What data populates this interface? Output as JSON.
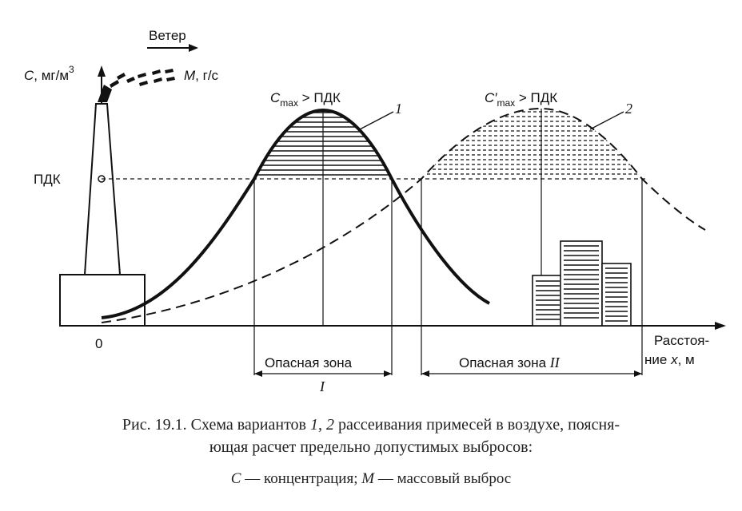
{
  "labels": {
    "wind": "Ветер",
    "y_axis_c": "C",
    "y_axis_unit": ", мг/м",
    "y_axis_exp": "3",
    "emission_m": "M",
    "emission_unit": ", г/с",
    "pdk": "ПДК",
    "origin": "0",
    "cmax_c": "C",
    "cmax_sub": "max",
    "cmax_rest": " > ПДК",
    "cmax2_c": "C′",
    "cmax2_sub": "max",
    "cmax2_rest": " > ПДК",
    "curve1": "1",
    "curve2": "2",
    "x_axis_line1": "Расстоя-",
    "x_axis_line2_a": "ние ",
    "x_axis_line2_x": "x",
    "x_axis_line2_b": ", м",
    "zone1": "Опасная зона",
    "zone1_num": "I",
    "zone2": "Опасная зона ",
    "zone2_num": "II"
  },
  "caption": {
    "line1_a": "Рис. 19.1. Схема вариантов ",
    "line1_n1": "1",
    "line1_b": ", ",
    "line1_n2": "2",
    "line1_c": " рассеивания примесей в воздухе, поясня-",
    "line2": "ющая расчет предельно допустимых выбросов:",
    "line3_c": "C",
    "line3_a": " — концентрация; ",
    "line3_m": "M",
    "line3_b": " — массовый выброс"
  },
  "colors": {
    "ink": "#111111"
  }
}
